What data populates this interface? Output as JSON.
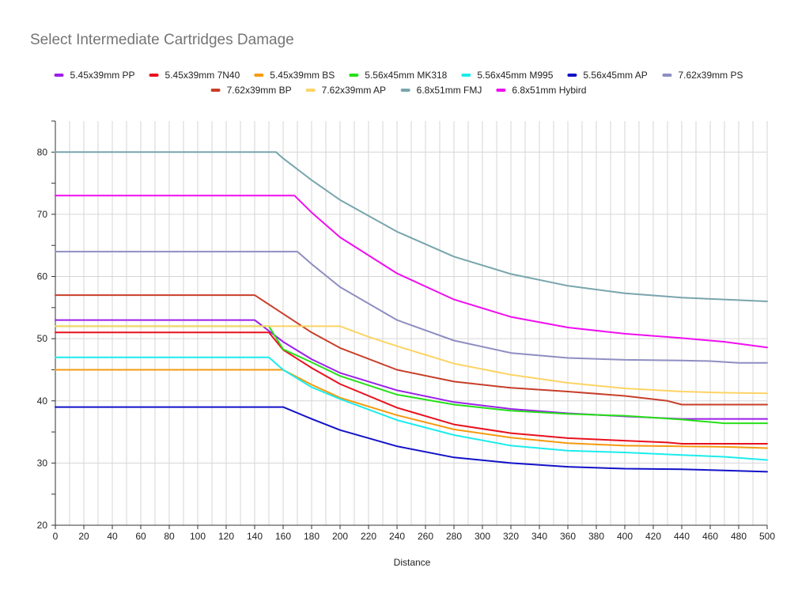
{
  "chart_data": {
    "type": "line",
    "title": "Select Intermediate Cartridges Damage",
    "xlabel": "Distance",
    "ylabel": "",
    "xlim": [
      0,
      500
    ],
    "ylim": [
      20,
      85
    ],
    "x_ticks": [
      0,
      20,
      40,
      60,
      80,
      100,
      120,
      140,
      160,
      180,
      200,
      220,
      240,
      260,
      280,
      300,
      320,
      340,
      360,
      380,
      400,
      420,
      440,
      460,
      480,
      500
    ],
    "y_ticks": [
      20,
      30,
      40,
      50,
      60,
      70,
      80
    ],
    "grid": true,
    "legend_position": "top",
    "series": [
      {
        "name": "5.45x39mm PP",
        "color": "#9b1fe8",
        "x": [
          0,
          140,
          160,
          180,
          200,
          240,
          280,
          320,
          360,
          400,
          440,
          470,
          500
        ],
        "y": [
          53,
          53,
          49.5,
          46.7,
          44.5,
          41.7,
          39.8,
          38.7,
          38.0,
          37.5,
          37.1,
          37.1,
          37.1
        ]
      },
      {
        "name": "5.45x39mm 7N40",
        "color": "#e8111e",
        "x": [
          0,
          150,
          160,
          180,
          200,
          240,
          280,
          320,
          360,
          400,
          430,
          440,
          470,
          500
        ],
        "y": [
          51,
          51,
          48.2,
          45.3,
          42.7,
          38.9,
          36.2,
          34.8,
          34.0,
          33.6,
          33.3,
          33.1,
          33.1,
          33.1
        ]
      },
      {
        "name": "5.45x39mm BS",
        "color": "#f59a0f",
        "x": [
          0,
          160,
          180,
          200,
          240,
          280,
          320,
          360,
          400,
          440,
          470,
          500
        ],
        "y": [
          45,
          45,
          42.6,
          40.5,
          37.7,
          35.4,
          34.1,
          33.2,
          32.8,
          32.7,
          32.6,
          32.4
        ]
      },
      {
        "name": "5.56x45mm MK318",
        "color": "#25e018",
        "x": [
          0,
          150,
          160,
          180,
          200,
          240,
          280,
          320,
          360,
          400,
          440,
          470,
          500
        ],
        "y": [
          52,
          52,
          48.3,
          46.2,
          44.0,
          41.0,
          39.4,
          38.4,
          37.9,
          37.6,
          37.0,
          36.4,
          36.4
        ]
      },
      {
        "name": "5.56x45mm M995",
        "color": "#1cecec",
        "x": [
          0,
          150,
          160,
          180,
          200,
          240,
          280,
          320,
          360,
          400,
          440,
          470,
          500
        ],
        "y": [
          47,
          47,
          45.0,
          42.2,
          40.3,
          36.9,
          34.5,
          32.8,
          32.0,
          31.7,
          31.3,
          31.0,
          30.5
        ]
      },
      {
        "name": "5.56x45mm AP",
        "color": "#1212c8",
        "x": [
          0,
          160,
          180,
          200,
          240,
          280,
          320,
          360,
          400,
          440,
          470,
          500
        ],
        "y": [
          39,
          39,
          37.1,
          35.3,
          32.7,
          30.9,
          30.0,
          29.4,
          29.1,
          29.0,
          28.8,
          28.6
        ]
      },
      {
        "name": "7.62x39mm PS",
        "color": "#8e8ec2",
        "x": [
          0,
          170,
          180,
          200,
          240,
          280,
          320,
          360,
          400,
          440,
          460,
          480,
          500
        ],
        "y": [
          64,
          64,
          62.0,
          58.3,
          53.0,
          49.7,
          47.7,
          46.9,
          46.6,
          46.5,
          46.4,
          46.1,
          46.1
        ]
      },
      {
        "name": "7.62x39mm BP",
        "color": "#c73f2a",
        "x": [
          0,
          140,
          160,
          180,
          200,
          240,
          280,
          320,
          360,
          400,
          430,
          440,
          470,
          500
        ],
        "y": [
          57,
          57,
          54.0,
          51.0,
          48.5,
          45.0,
          43.1,
          42.1,
          41.5,
          40.8,
          40.0,
          39.4,
          39.4,
          39.4
        ]
      },
      {
        "name": "7.62x39mm AP",
        "color": "#fcd464",
        "x": [
          0,
          200,
          220,
          240,
          280,
          320,
          360,
          400,
          440,
          470,
          500
        ],
        "y": [
          52,
          52,
          50.3,
          48.8,
          46.0,
          44.2,
          42.9,
          42.0,
          41.5,
          41.3,
          41.2
        ]
      },
      {
        "name": "6.8x51mm FMJ",
        "color": "#78a5ad",
        "x": [
          0,
          155,
          160,
          180,
          200,
          240,
          280,
          320,
          360,
          400,
          440,
          470,
          500
        ],
        "y": [
          80,
          80,
          79.0,
          75.5,
          72.3,
          67.2,
          63.2,
          60.4,
          58.5,
          57.3,
          56.6,
          56.3,
          56.0
        ]
      },
      {
        "name": "6.8x51mm Hybird",
        "color": "#f00ef0",
        "x": [
          0,
          168,
          180,
          200,
          240,
          280,
          320,
          360,
          400,
          440,
          470,
          500
        ],
        "y": [
          73,
          73,
          70.3,
          66.3,
          60.5,
          56.3,
          53.5,
          51.8,
          50.8,
          50.1,
          49.5,
          48.6
        ]
      }
    ]
  }
}
